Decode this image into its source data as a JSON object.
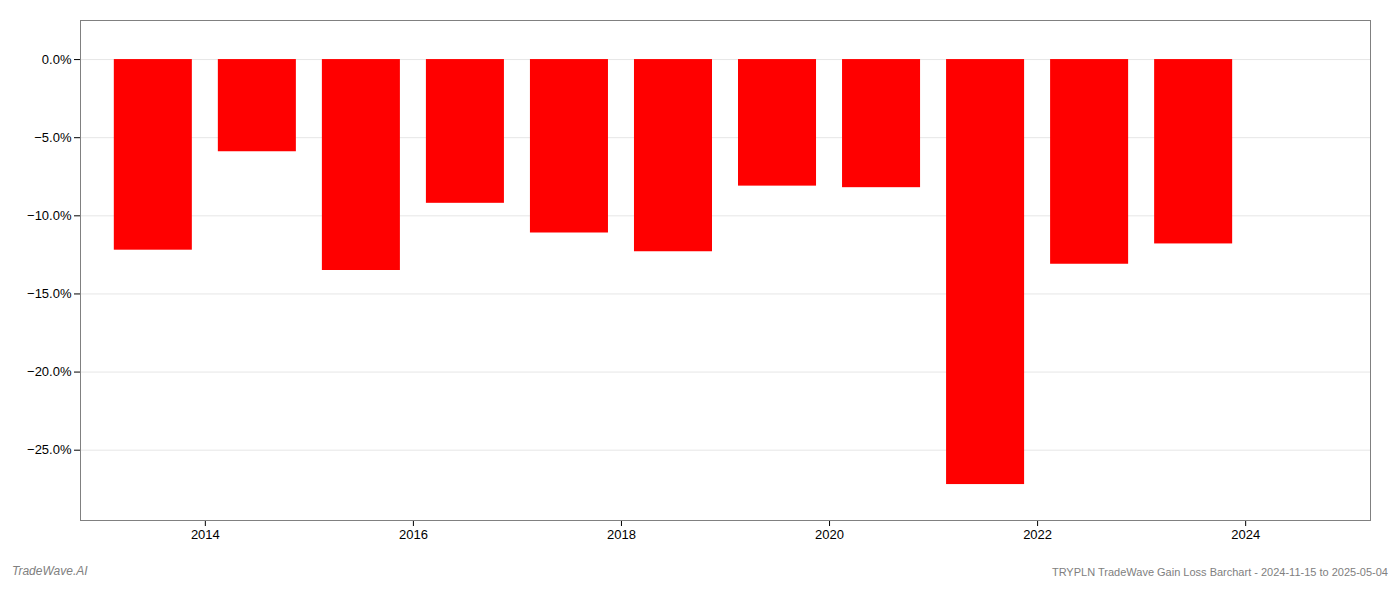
{
  "chart_data": {
    "type": "bar",
    "x": [
      2013.5,
      2014.5,
      2015.5,
      2016.5,
      2017.5,
      2018.5,
      2019.5,
      2020.5,
      2021.5,
      2022.5,
      2023.5
    ],
    "values": [
      -12.2,
      -5.9,
      -13.5,
      -9.2,
      -11.1,
      -12.3,
      -8.1,
      -8.2,
      -27.2,
      -13.1,
      -11.8
    ],
    "color": "#ff0000",
    "xlim": [
      2012.8,
      2025.2
    ],
    "xticks": [
      2014,
      2016,
      2018,
      2020,
      2022,
      2024
    ],
    "ylim": [
      -29.5,
      2.5
    ],
    "yticks": [
      {
        "value": 0.0,
        "label": "0.0%"
      },
      {
        "value": -5.0,
        "label": "−5.0%"
      },
      {
        "value": -10.0,
        "label": "−10.0%"
      },
      {
        "value": -15.0,
        "label": "−15.0%"
      },
      {
        "value": -20.0,
        "label": "−20.0%"
      },
      {
        "value": -25.0,
        "label": "−25.0%"
      }
    ],
    "grid": true,
    "annotations": [
      "TradeWave.AI",
      "TRYPLN TradeWave Gain Loss Barchart - 2024-11-15 to 2025-05-04"
    ]
  }
}
